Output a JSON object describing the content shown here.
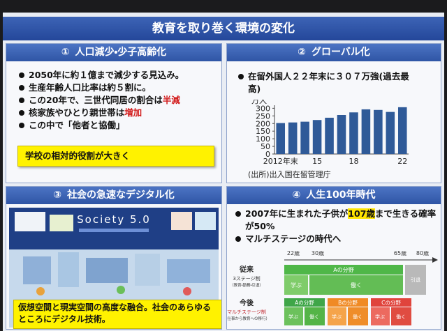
{
  "title": "教育を取り巻く環境の変化",
  "panels": [
    {
      "number": "①",
      "heading": "人口減少・少子高齢化",
      "bullets": [
        {
          "text": "2050年に約１億まで減少する見込み。"
        },
        {
          "text": "生産年齢人口比率は約５割に。"
        },
        {
          "text": "この20年で、三世代同居の割合は",
          "emphasis": "半減"
        },
        {
          "text": "核家族やひとり親世帯は",
          "emphasis": "増加"
        },
        {
          "text": "この中で「他者と協働」"
        }
      ],
      "callout": "学校の相対的役割が大きく"
    },
    {
      "number": "②",
      "heading": "グローバル化",
      "bullets": [
        {
          "text": "在留外国人２２年末に３０７万強(過去最高)"
        }
      ],
      "chart_data": {
        "type": "bar",
        "unit": "万人",
        "categories": [
          "2012年末",
          null,
          null,
          "15",
          null,
          null,
          "18",
          null,
          null,
          null,
          "22"
        ],
        "values": [
          203,
          207,
          212,
          223,
          238,
          256,
          273,
          293,
          289,
          276,
          307
        ],
        "color": "#2f5a98",
        "ylim": [
          0,
          320
        ],
        "yticks": [
          0,
          50,
          100,
          150,
          200,
          250,
          300
        ],
        "source": "(出所)出入国在留管理庁"
      }
    },
    {
      "number": "③",
      "heading": "社会の急速なデジタル化",
      "image_title": "Society 5.0",
      "callout": "仮想空間と現実空間の高度な融合。社会のあらゆるところにデジタル技術。"
    },
    {
      "number": "④",
      "heading": "人生100年時代",
      "bullets": [
        {
          "text": "2007年に生まれた子供が",
          "emphasis": "107歳",
          "after": "まで生きる確率が50%"
        },
        {
          "text": "マルチステージの時代へ"
        }
      ],
      "diagram": {
        "ages": [
          "22歳",
          "30歳",
          "65歳",
          "80歳"
        ],
        "traditional": {
          "label": "従来",
          "system": "3ステージ制",
          "note": "（教育・勤務・引退）",
          "field": "Aの分野",
          "stages": [
            "学ぶ",
            "働く",
            "引退"
          ]
        },
        "future": {
          "label": "今後",
          "system": "マルチステージ制",
          "note": "（仕事から教育への移行）",
          "fields": [
            "Aの分野",
            "Bの分野",
            "Cの分野"
          ],
          "stages": [
            "学ぶ",
            "働く"
          ]
        }
      }
    }
  ]
}
